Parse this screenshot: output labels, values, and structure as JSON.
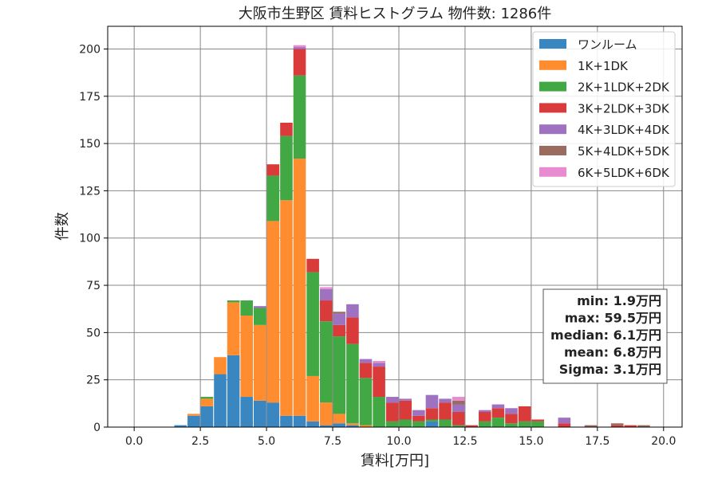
{
  "chart_data": {
    "type": "bar",
    "stacked": true,
    "title": "大阪市生野区 賃料ヒストグラム  物件数: 1286件",
    "xlabel": "賃料[万円]",
    "ylabel": "件数",
    "xlim": [
      -1.0,
      20.7
    ],
    "ylim": [
      0,
      212
    ],
    "xticks": [
      0.0,
      2.5,
      5.0,
      7.5,
      10.0,
      12.5,
      15.0,
      17.5,
      20.0
    ],
    "xtick_labels": [
      "0.0",
      "2.5",
      "5.0",
      "7.5",
      "10.0",
      "12.5",
      "15.0",
      "17.5",
      "20.0"
    ],
    "yticks": [
      0,
      25,
      50,
      75,
      100,
      125,
      150,
      175,
      200
    ],
    "ytick_labels": [
      "0",
      "25",
      "50",
      "75",
      "100",
      "125",
      "150",
      "175",
      "200"
    ],
    "grid": true,
    "legend_position": "top-right",
    "bin_width": 0.5,
    "x": [
      1.5,
      2.0,
      2.5,
      3.0,
      3.5,
      4.0,
      4.5,
      5.0,
      5.5,
      6.0,
      6.5,
      7.0,
      7.5,
      8.0,
      8.5,
      9.0,
      9.5,
      10.0,
      10.5,
      11.0,
      11.5,
      12.0,
      12.5,
      13.0,
      13.5,
      14.0,
      14.5,
      15.0,
      15.5,
      16.0,
      16.5,
      17.0,
      17.5,
      18.0,
      18.5,
      19.0,
      19.5
    ],
    "series": [
      {
        "name": "ワンルーム",
        "color": "#3a86c0",
        "values": [
          1,
          6,
          11,
          28,
          38,
          16,
          14,
          13,
          6,
          6,
          3,
          1,
          2,
          1,
          0,
          0,
          0,
          0,
          0,
          3,
          0,
          0,
          0,
          0,
          0,
          0,
          0,
          0,
          0,
          0,
          0,
          0,
          0,
          0,
          0,
          0,
          0
        ]
      },
      {
        "name": "1K+1DK",
        "color": "#ff8c2e",
        "values": [
          0,
          1,
          4,
          9,
          28,
          43,
          40,
          96,
          114,
          136,
          24,
          12,
          5,
          1,
          1,
          0,
          0,
          0,
          0,
          0,
          0,
          0,
          0,
          0,
          0,
          0,
          0,
          0,
          0,
          0,
          0,
          0,
          0,
          0,
          0,
          0,
          0
        ]
      },
      {
        "name": "2K+1LDK+2DK",
        "color": "#42a843",
        "values": [
          0,
          0,
          1,
          0,
          1,
          8,
          9,
          24,
          34,
          44,
          55,
          43,
          41,
          42,
          25,
          16,
          3,
          4,
          3,
          1,
          4,
          1,
          0,
          3,
          5,
          2,
          3,
          3,
          0,
          0,
          0,
          0,
          0,
          0,
          0,
          0,
          0
        ]
      },
      {
        "name": "3K+2LDK+3DK",
        "color": "#d93b3b",
        "values": [
          0,
          0,
          0,
          0,
          0,
          0,
          0,
          6,
          7,
          14,
          7,
          11,
          6,
          14,
          8,
          16,
          10,
          10,
          3,
          6,
          9,
          7,
          1,
          5,
          5,
          5,
          8,
          1,
          0,
          2,
          0,
          0,
          0,
          1,
          1,
          0,
          0
        ]
      },
      {
        "name": "4K+3LDK+4DK",
        "color": "#9f72c1",
        "values": [
          0,
          0,
          0,
          0,
          0,
          0,
          1,
          0,
          0,
          1,
          0,
          6,
          6,
          7,
          2,
          2,
          3,
          1,
          3,
          7,
          2,
          4,
          0,
          1,
          2,
          3,
          0,
          0,
          0,
          3,
          0,
          0,
          0,
          0,
          0,
          0,
          0
        ]
      },
      {
        "name": "5K+4LDK+5DK",
        "color": "#9a6b5e",
        "values": [
          0,
          0,
          0,
          0,
          0,
          0,
          0,
          0,
          0,
          0,
          0,
          0,
          1,
          0,
          0,
          0,
          0,
          0,
          0,
          0,
          0,
          2,
          0,
          0,
          0,
          0,
          0,
          0,
          0,
          0,
          0,
          1,
          0,
          1,
          0,
          1,
          0
        ]
      },
      {
        "name": "6K+5LDK+6DK",
        "color": "#e98bd0",
        "values": [
          0,
          0,
          0,
          0,
          0,
          0,
          0,
          0,
          0,
          1,
          0,
          1,
          0,
          0,
          0,
          1,
          0,
          0,
          0,
          0,
          0,
          2,
          0,
          0,
          0,
          0,
          0,
          0,
          0,
          0,
          0,
          0,
          0,
          0,
          0,
          0,
          0
        ]
      }
    ],
    "annotations": [
      "min: 1.9万円",
      "max: 59.5万円",
      "median: 6.1万円",
      "mean: 6.8万円",
      "Sigma: 3.1万円"
    ]
  }
}
